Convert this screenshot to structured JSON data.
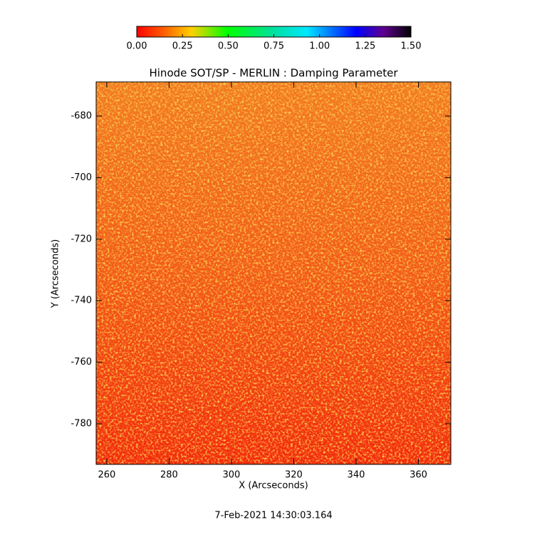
{
  "chart_data": {
    "type": "image",
    "title": "Hinode SOT/SP - MERLIN : Damping Parameter",
    "x_label": "X (Arcseconds)",
    "y_label": "Y (Arcseconds)",
    "footer": "7-Feb-2021 14:30:03.164",
    "xlim": [
      256.6,
      370.4
    ],
    "ylim": [
      -793.2,
      -668.9
    ],
    "xticks": [
      260,
      280,
      300,
      320,
      340,
      360
    ],
    "yticks": [
      -680,
      -700,
      -720,
      -740,
      -760,
      -780
    ],
    "colorbar": {
      "lim": [
        0,
        1.5
      ],
      "ticks": [
        {
          "value": 0,
          "label": "0.00"
        },
        {
          "value": 0.25,
          "label": "0.25"
        },
        {
          "value": 0.5,
          "label": "0.50"
        },
        {
          "value": 0.75,
          "label": "0.75"
        },
        {
          "value": 1,
          "label": "1.00"
        },
        {
          "value": 1.25,
          "label": "1.25"
        },
        {
          "value": 1.5,
          "label": "1.50"
        }
      ]
    }
  }
}
